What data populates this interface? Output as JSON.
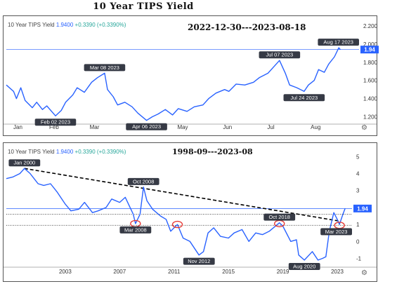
{
  "page_title": "10 Year TIPS Yield",
  "panels": [
    {
      "header": {
        "name": "10 Year TIPS Yield",
        "value": "1.9400",
        "change": "+0.3390 (+0.3390%)"
      },
      "range_label": "2022-12-30---2023-08-18",
      "settings_icon": "gear-icon"
    },
    {
      "header": {
        "name": "10 Year TIPS Yield",
        "value": "1.9400",
        "change": "+0.3390 (+0.3390%)"
      },
      "range_label": "1998-09---2023-08",
      "settings_icon": "gear-icon"
    }
  ],
  "colors": {
    "line": "#2962ff",
    "label_bg": "#363a45",
    "label_text": "#ffffff",
    "current_bg": "#2962ff",
    "trend": "#000000",
    "circle": "#e53935"
  },
  "chart_data": [
    {
      "type": "line",
      "x_type": "date",
      "xlim": [
        "2022-12-30",
        "2023-08-31"
      ],
      "ylim": [
        1.15,
        2.2
      ],
      "y_ticks": [
        "2.200",
        "2.000",
        "1.800",
        "1.600",
        "1.400",
        "1.200"
      ],
      "y_tick_values": [
        2.2,
        2.0,
        1.8,
        1.6,
        1.4,
        1.2
      ],
      "x_ticks": [
        {
          "label": "Jan",
          "date": "2023-01-07"
        },
        {
          "label": "Feb",
          "date": "2023-02-01"
        },
        {
          "label": "Mar",
          "date": "2023-03-01"
        },
        {
          "label": "Apr",
          "date": "2023-04-01"
        },
        {
          "label": "May",
          "date": "2023-05-01"
        },
        {
          "label": "Jun",
          "date": "2023-06-01"
        },
        {
          "label": "Jul",
          "date": "2023-07-01"
        },
        {
          "label": "Aug",
          "date": "2023-08-01"
        }
      ],
      "current_value": 1.94,
      "current_label": "1.94",
      "series": [
        {
          "values": [
            [
              "2022-12-30",
              1.55
            ],
            [
              "2023-01-04",
              1.48
            ],
            [
              "2023-01-06",
              1.4
            ],
            [
              "2023-01-09",
              1.52
            ],
            [
              "2023-01-12",
              1.38
            ],
            [
              "2023-01-17",
              1.3
            ],
            [
              "2023-01-20",
              1.36
            ],
            [
              "2023-01-24",
              1.28
            ],
            [
              "2023-01-27",
              1.32
            ],
            [
              "2023-02-02",
              1.21
            ],
            [
              "2023-02-06",
              1.27
            ],
            [
              "2023-02-09",
              1.36
            ],
            [
              "2023-02-14",
              1.44
            ],
            [
              "2023-02-17",
              1.52
            ],
            [
              "2023-02-22",
              1.47
            ],
            [
              "2023-02-27",
              1.58
            ],
            [
              "2023-03-03",
              1.63
            ],
            [
              "2023-03-08",
              1.68
            ],
            [
              "2023-03-10",
              1.5
            ],
            [
              "2023-03-14",
              1.42
            ],
            [
              "2023-03-17",
              1.33
            ],
            [
              "2023-03-22",
              1.36
            ],
            [
              "2023-03-27",
              1.31
            ],
            [
              "2023-03-31",
              1.24
            ],
            [
              "2023-04-06",
              1.16
            ],
            [
              "2023-04-10",
              1.2
            ],
            [
              "2023-04-14",
              1.23
            ],
            [
              "2023-04-19",
              1.28
            ],
            [
              "2023-04-24",
              1.22
            ],
            [
              "2023-04-28",
              1.29
            ],
            [
              "2023-05-04",
              1.26
            ],
            [
              "2023-05-09",
              1.31
            ],
            [
              "2023-05-15",
              1.33
            ],
            [
              "2023-05-19",
              1.4
            ],
            [
              "2023-05-24",
              1.46
            ],
            [
              "2023-05-30",
              1.5
            ],
            [
              "2023-06-02",
              1.48
            ],
            [
              "2023-06-07",
              1.56
            ],
            [
              "2023-06-13",
              1.55
            ],
            [
              "2023-06-19",
              1.58
            ],
            [
              "2023-06-23",
              1.63
            ],
            [
              "2023-06-29",
              1.68
            ],
            [
              "2023-07-03",
              1.75
            ],
            [
              "2023-07-07",
              1.82
            ],
            [
              "2023-07-11",
              1.68
            ],
            [
              "2023-07-14",
              1.55
            ],
            [
              "2023-07-19",
              1.52
            ],
            [
              "2023-07-24",
              1.48
            ],
            [
              "2023-07-27",
              1.55
            ],
            [
              "2023-07-31",
              1.6
            ],
            [
              "2023-08-03",
              1.72
            ],
            [
              "2023-08-07",
              1.69
            ],
            [
              "2023-08-10",
              1.78
            ],
            [
              "2023-08-14",
              1.86
            ],
            [
              "2023-08-17",
              1.96
            ],
            [
              "2023-08-18",
              1.94
            ]
          ]
        }
      ],
      "annotations": [
        {
          "label": "Mar 08 2023",
          "date": "2023-03-08",
          "value": 1.68,
          "side": "above"
        },
        {
          "label": "Feb 02 2023",
          "date": "2023-02-02",
          "value": 1.21,
          "side": "below"
        },
        {
          "label": "Apr 06 2023",
          "date": "2023-04-06",
          "value": 1.16,
          "side": "below"
        },
        {
          "label": "Jul 07 2023",
          "date": "2023-07-07",
          "value": 1.82,
          "side": "above"
        },
        {
          "label": "Jul 24 2023",
          "date": "2023-07-24",
          "value": 1.48,
          "side": "below"
        },
        {
          "label": "Aug 17 2023",
          "date": "2023-08-17",
          "value": 1.96,
          "side": "above"
        }
      ]
    },
    {
      "type": "line",
      "x_type": "date",
      "xlim": [
        "1998-09-01",
        "2024-02-01"
      ],
      "ylim": [
        -1.35,
        5.3
      ],
      "y_ticks": [
        "5",
        "4",
        "3",
        "2",
        "1",
        "0",
        "-1"
      ],
      "y_tick_values": [
        5,
        4,
        3,
        2,
        1,
        0,
        -1
      ],
      "x_ticks": [
        {
          "label": "2003",
          "date": "2003-01-01"
        },
        {
          "label": "2007",
          "date": "2007-01-01"
        },
        {
          "label": "2011",
          "date": "2011-01-01"
        },
        {
          "label": "2015",
          "date": "2015-01-01"
        },
        {
          "label": "2019",
          "date": "2019-01-01"
        },
        {
          "label": "2023",
          "date": "2023-01-01"
        }
      ],
      "current_value": 1.94,
      "current_label": "1.94",
      "reference_lines": [
        1.6,
        0.95
      ],
      "trend_line": [
        [
          "2000-01-01",
          4.3
        ],
        [
          "2023-03-01",
          1.2
        ]
      ],
      "circles": [
        {
          "date": "2008-03-01",
          "value": 1.05
        },
        {
          "date": "2011-04-01",
          "value": 1.0
        },
        {
          "date": "2018-10-01",
          "value": 1.05
        },
        {
          "date": "2023-03-01",
          "value": 0.95
        }
      ],
      "series": [
        {
          "values": [
            [
              "1998-09-01",
              3.7
            ],
            [
              "1999-03-01",
              3.8
            ],
            [
              "1999-09-01",
              4.0
            ],
            [
              "2000-01-01",
              4.3
            ],
            [
              "2000-06-01",
              4.0
            ],
            [
              "2001-01-01",
              3.4
            ],
            [
              "2001-06-01",
              3.3
            ],
            [
              "2001-12-01",
              3.4
            ],
            [
              "2002-06-01",
              2.9
            ],
            [
              "2003-01-01",
              2.2
            ],
            [
              "2003-06-01",
              1.8
            ],
            [
              "2004-01-01",
              1.9
            ],
            [
              "2004-06-01",
              2.3
            ],
            [
              "2005-01-01",
              1.7
            ],
            [
              "2005-06-01",
              1.8
            ],
            [
              "2006-01-01",
              2.0
            ],
            [
              "2006-06-01",
              2.5
            ],
            [
              "2007-01-01",
              2.3
            ],
            [
              "2007-06-01",
              2.6
            ],
            [
              "2008-01-01",
              1.6
            ],
            [
              "2008-03-01",
              1.05
            ],
            [
              "2008-07-01",
              1.6
            ],
            [
              "2008-10-01",
              3.2
            ],
            [
              "2009-01-01",
              2.4
            ],
            [
              "2009-06-01",
              1.9
            ],
            [
              "2010-01-01",
              1.5
            ],
            [
              "2010-06-01",
              1.3
            ],
            [
              "2010-10-01",
              0.6
            ],
            [
              "2011-04-01",
              1.0
            ],
            [
              "2011-09-01",
              0.2
            ],
            [
              "2012-03-01",
              0.0
            ],
            [
              "2012-11-01",
              -0.8
            ],
            [
              "2013-03-01",
              -0.6
            ],
            [
              "2013-07-01",
              0.5
            ],
            [
              "2013-12-01",
              0.8
            ],
            [
              "2014-06-01",
              0.3
            ],
            [
              "2015-01-01",
              0.2
            ],
            [
              "2015-06-01",
              0.5
            ],
            [
              "2016-01-01",
              0.7
            ],
            [
              "2016-07-01",
              0.0
            ],
            [
              "2017-01-01",
              0.5
            ],
            [
              "2017-07-01",
              0.4
            ],
            [
              "2018-01-01",
              0.6
            ],
            [
              "2018-10-01",
              1.1
            ],
            [
              "2019-01-01",
              0.9
            ],
            [
              "2019-08-01",
              0.0
            ],
            [
              "2020-01-01",
              0.1
            ],
            [
              "2020-03-01",
              -0.8
            ],
            [
              "2020-08-01",
              -1.1
            ],
            [
              "2021-03-01",
              -0.6
            ],
            [
              "2021-08-01",
              -1.1
            ],
            [
              "2021-12-01",
              -1.0
            ],
            [
              "2022-03-01",
              -0.9
            ],
            [
              "2022-06-01",
              0.6
            ],
            [
              "2022-10-01",
              1.7
            ],
            [
              "2023-01-01",
              1.3
            ],
            [
              "2023-03-01",
              1.0
            ],
            [
              "2023-06-01",
              1.6
            ],
            [
              "2023-08-01",
              1.94
            ]
          ]
        }
      ],
      "annotations": [
        {
          "label": "Jan 2000",
          "date": "2000-01-01",
          "value": 4.3,
          "side": "above"
        },
        {
          "label": "Oct 2008",
          "date": "2008-10-01",
          "value": 3.2,
          "side": "above"
        },
        {
          "label": "Mar 2008",
          "date": "2008-03-01",
          "value": 1.05,
          "side": "below"
        },
        {
          "label": "Nov 2012",
          "date": "2012-11-01",
          "value": -0.8,
          "side": "below"
        },
        {
          "label": "Oct 2018",
          "date": "2018-10-01",
          "value": 1.1,
          "side": "above"
        },
        {
          "label": "Aug 2020",
          "date": "2020-08-01",
          "value": -1.1,
          "side": "below"
        },
        {
          "label": "Mar 2023",
          "date": "2023-03-01",
          "value": 0.95,
          "side": "below"
        }
      ]
    }
  ]
}
